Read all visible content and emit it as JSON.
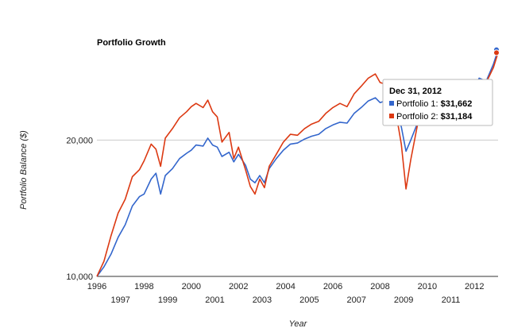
{
  "chart_data": {
    "type": "line",
    "title": "Portfolio Growth",
    "xlabel": "Year",
    "ylabel": "Portfolio Balance ($)",
    "yscale": "log",
    "ylim": [
      10000,
      32000
    ],
    "xlim": [
      1996.0,
      2013.0
    ],
    "grid": true,
    "x_ticks_upper": [
      "1996",
      "1998",
      "2000",
      "2002",
      "2004",
      "2006",
      "2008",
      "2010",
      "2012"
    ],
    "x_ticks_lower": [
      "1997",
      "1999",
      "2001",
      "2003",
      "2005",
      "2007",
      "2009",
      "2011"
    ],
    "y_ticks": [
      {
        "value": 10000,
        "label": "10,000"
      },
      {
        "value": 20000,
        "label": "20,000"
      }
    ],
    "series": [
      {
        "name": "Portfolio 1",
        "color": "#3366cc",
        "points": [
          [
            1996.0,
            10000
          ],
          [
            1996.3,
            10500
          ],
          [
            1996.6,
            11200
          ],
          [
            1996.9,
            12200
          ],
          [
            1997.2,
            13000
          ],
          [
            1997.5,
            14300
          ],
          [
            1997.8,
            15000
          ],
          [
            1998.0,
            15200
          ],
          [
            1998.3,
            16400
          ],
          [
            1998.5,
            16900
          ],
          [
            1998.7,
            15200
          ],
          [
            1998.9,
            16700
          ],
          [
            1999.2,
            17300
          ],
          [
            1999.5,
            18200
          ],
          [
            1999.8,
            18700
          ],
          [
            2000.0,
            19000
          ],
          [
            2000.2,
            19500
          ],
          [
            2000.5,
            19400
          ],
          [
            2000.7,
            20200
          ],
          [
            2000.9,
            19500
          ],
          [
            2001.1,
            19300
          ],
          [
            2001.3,
            18400
          ],
          [
            2001.6,
            18800
          ],
          [
            2001.8,
            17900
          ],
          [
            2002.0,
            18600
          ],
          [
            2002.3,
            17600
          ],
          [
            2002.5,
            16400
          ],
          [
            2002.7,
            16100
          ],
          [
            2002.9,
            16700
          ],
          [
            2003.1,
            16100
          ],
          [
            2003.3,
            17300
          ],
          [
            2003.6,
            18200
          ],
          [
            2003.9,
            19000
          ],
          [
            2004.2,
            19600
          ],
          [
            2004.5,
            19700
          ],
          [
            2004.8,
            20100
          ],
          [
            2005.1,
            20400
          ],
          [
            2005.4,
            20600
          ],
          [
            2005.7,
            21200
          ],
          [
            2006.0,
            21600
          ],
          [
            2006.3,
            21900
          ],
          [
            2006.6,
            21800
          ],
          [
            2006.9,
            22900
          ],
          [
            2007.2,
            23600
          ],
          [
            2007.5,
            24400
          ],
          [
            2007.8,
            24800
          ],
          [
            2008.0,
            24200
          ],
          [
            2008.3,
            24500
          ],
          [
            2008.6,
            23200
          ],
          [
            2008.9,
            21400
          ],
          [
            2009.1,
            18900
          ],
          [
            2009.3,
            20000
          ],
          [
            2009.6,
            21900
          ],
          [
            2009.9,
            23000
          ],
          [
            2010.2,
            23400
          ],
          [
            2010.5,
            22500
          ],
          [
            2010.8,
            24400
          ],
          [
            2011.1,
            25800
          ],
          [
            2011.4,
            26000
          ],
          [
            2011.7,
            24200
          ],
          [
            2011.9,
            25400
          ],
          [
            2012.2,
            27400
          ],
          [
            2012.5,
            27000
          ],
          [
            2012.8,
            29400
          ],
          [
            2013.0,
            31662
          ]
        ]
      },
      {
        "name": "Portfolio 2",
        "color": "#dc3912",
        "points": [
          [
            1996.0,
            10000
          ],
          [
            1996.3,
            10800
          ],
          [
            1996.6,
            12300
          ],
          [
            1996.9,
            13800
          ],
          [
            1997.2,
            14800
          ],
          [
            1997.5,
            16600
          ],
          [
            1997.8,
            17200
          ],
          [
            1998.0,
            18000
          ],
          [
            1998.3,
            19600
          ],
          [
            1998.5,
            19100
          ],
          [
            1998.7,
            17500
          ],
          [
            1998.9,
            20200
          ],
          [
            1999.2,
            21200
          ],
          [
            1999.5,
            22400
          ],
          [
            1999.8,
            23100
          ],
          [
            2000.0,
            23700
          ],
          [
            2000.2,
            24100
          ],
          [
            2000.5,
            23600
          ],
          [
            2000.7,
            24500
          ],
          [
            2000.9,
            23100
          ],
          [
            2001.1,
            22500
          ],
          [
            2001.3,
            19800
          ],
          [
            2001.6,
            20800
          ],
          [
            2001.8,
            18200
          ],
          [
            2002.0,
            19300
          ],
          [
            2002.3,
            17200
          ],
          [
            2002.5,
            15800
          ],
          [
            2002.7,
            15200
          ],
          [
            2002.9,
            16400
          ],
          [
            2003.1,
            15700
          ],
          [
            2003.3,
            17500
          ],
          [
            2003.6,
            18600
          ],
          [
            2003.9,
            19800
          ],
          [
            2004.2,
            20600
          ],
          [
            2004.5,
            20500
          ],
          [
            2004.8,
            21200
          ],
          [
            2005.1,
            21700
          ],
          [
            2005.4,
            22000
          ],
          [
            2005.7,
            22900
          ],
          [
            2006.0,
            23600
          ],
          [
            2006.3,
            24100
          ],
          [
            2006.6,
            23700
          ],
          [
            2006.9,
            25300
          ],
          [
            2007.2,
            26300
          ],
          [
            2007.5,
            27400
          ],
          [
            2007.8,
            28000
          ],
          [
            2008.0,
            26800
          ],
          [
            2008.3,
            26500
          ],
          [
            2008.6,
            24200
          ],
          [
            2008.9,
            19600
          ],
          [
            2009.1,
            15600
          ],
          [
            2009.3,
            18100
          ],
          [
            2009.6,
            21800
          ],
          [
            2009.9,
            23100
          ],
          [
            2010.2,
            23700
          ],
          [
            2010.5,
            22300
          ],
          [
            2010.8,
            24600
          ],
          [
            2011.1,
            26200
          ],
          [
            2011.4,
            26600
          ],
          [
            2011.7,
            23700
          ],
          [
            2011.9,
            25000
          ],
          [
            2012.2,
            27200
          ],
          [
            2012.5,
            26800
          ],
          [
            2012.8,
            28900
          ],
          [
            2013.0,
            31184
          ]
        ]
      }
    ],
    "tooltip": {
      "date": "Dec 31, 2012",
      "rows": [
        {
          "label": "Portfolio 1: ",
          "value": "$31,662",
          "color": "#3366cc"
        },
        {
          "label": "Portfolio 2: ",
          "value": "$31,184",
          "color": "#dc3912"
        }
      ]
    }
  }
}
